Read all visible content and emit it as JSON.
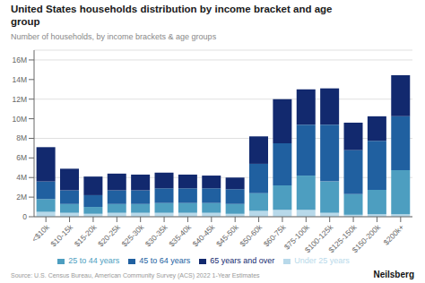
{
  "chart_data": {
    "type": "bar",
    "stacked": true,
    "title": "United States households distribution by income bracket and age\ngroup",
    "subtitle": "Number of households, by income brackets & age groups",
    "source": "Source: U.S. Census Bureau, American Community Survey (ACS) 2022 1-Year Estimates",
    "annotations": [
      "Neilsberg"
    ],
    "categories": [
      "<$10k",
      "$10-15k",
      "$15-20k",
      "$20-25k",
      "$25-30k",
      "$30-35k",
      "$35-40k",
      "$40-45k",
      "$45-50k",
      "$50-60k",
      "$60-75k",
      "$75-100k",
      "$100-125k",
      "$125-150k",
      "$150-200k",
      "$200k+"
    ],
    "series": [
      {
        "name": "Under 25 years",
        "color": "#b8d9ea",
        "values": [
          0.5,
          0.4,
          0.3,
          0.4,
          0.4,
          0.4,
          0.4,
          0.4,
          0.3,
          0.6,
          0.7,
          0.7,
          0.4,
          0.2,
          0.25,
          0.25
        ]
      },
      {
        "name": "25 to 44 years",
        "color": "#4d9ec0",
        "values": [
          1.3,
          0.9,
          0.7,
          0.9,
          0.9,
          1.0,
          1.0,
          1.0,
          1.0,
          1.8,
          2.5,
          3.5,
          3.2,
          2.1,
          2.5,
          4.5
        ]
      },
      {
        "name": "45 to 64 years",
        "color": "#2060a0",
        "values": [
          1.8,
          1.4,
          1.2,
          1.4,
          1.4,
          1.5,
          1.5,
          1.5,
          1.5,
          3.0,
          4.3,
          5.2,
          5.8,
          4.5,
          5.0,
          5.5
        ]
      },
      {
        "name": "65 years and over",
        "color": "#12296e",
        "values": [
          3.5,
          2.2,
          1.9,
          1.7,
          1.6,
          1.6,
          1.4,
          1.3,
          1.2,
          2.8,
          4.5,
          3.6,
          3.7,
          2.8,
          2.5,
          4.2
        ]
      }
    ],
    "ylim": [
      0,
      17
    ],
    "yticks": [
      0,
      {
        "value": 2,
        "label": "2M"
      },
      {
        "value": 4,
        "label": "4M"
      },
      {
        "value": 6,
        "label": "6M"
      },
      {
        "value": 8,
        "label": "8M"
      },
      {
        "value": 10,
        "label": "10M"
      },
      {
        "value": 12,
        "label": "12M"
      },
      {
        "value": 14,
        "label": "14M"
      },
      {
        "value": 16,
        "label": "16M"
      }
    ],
    "grid": true,
    "legend": "bottom"
  }
}
